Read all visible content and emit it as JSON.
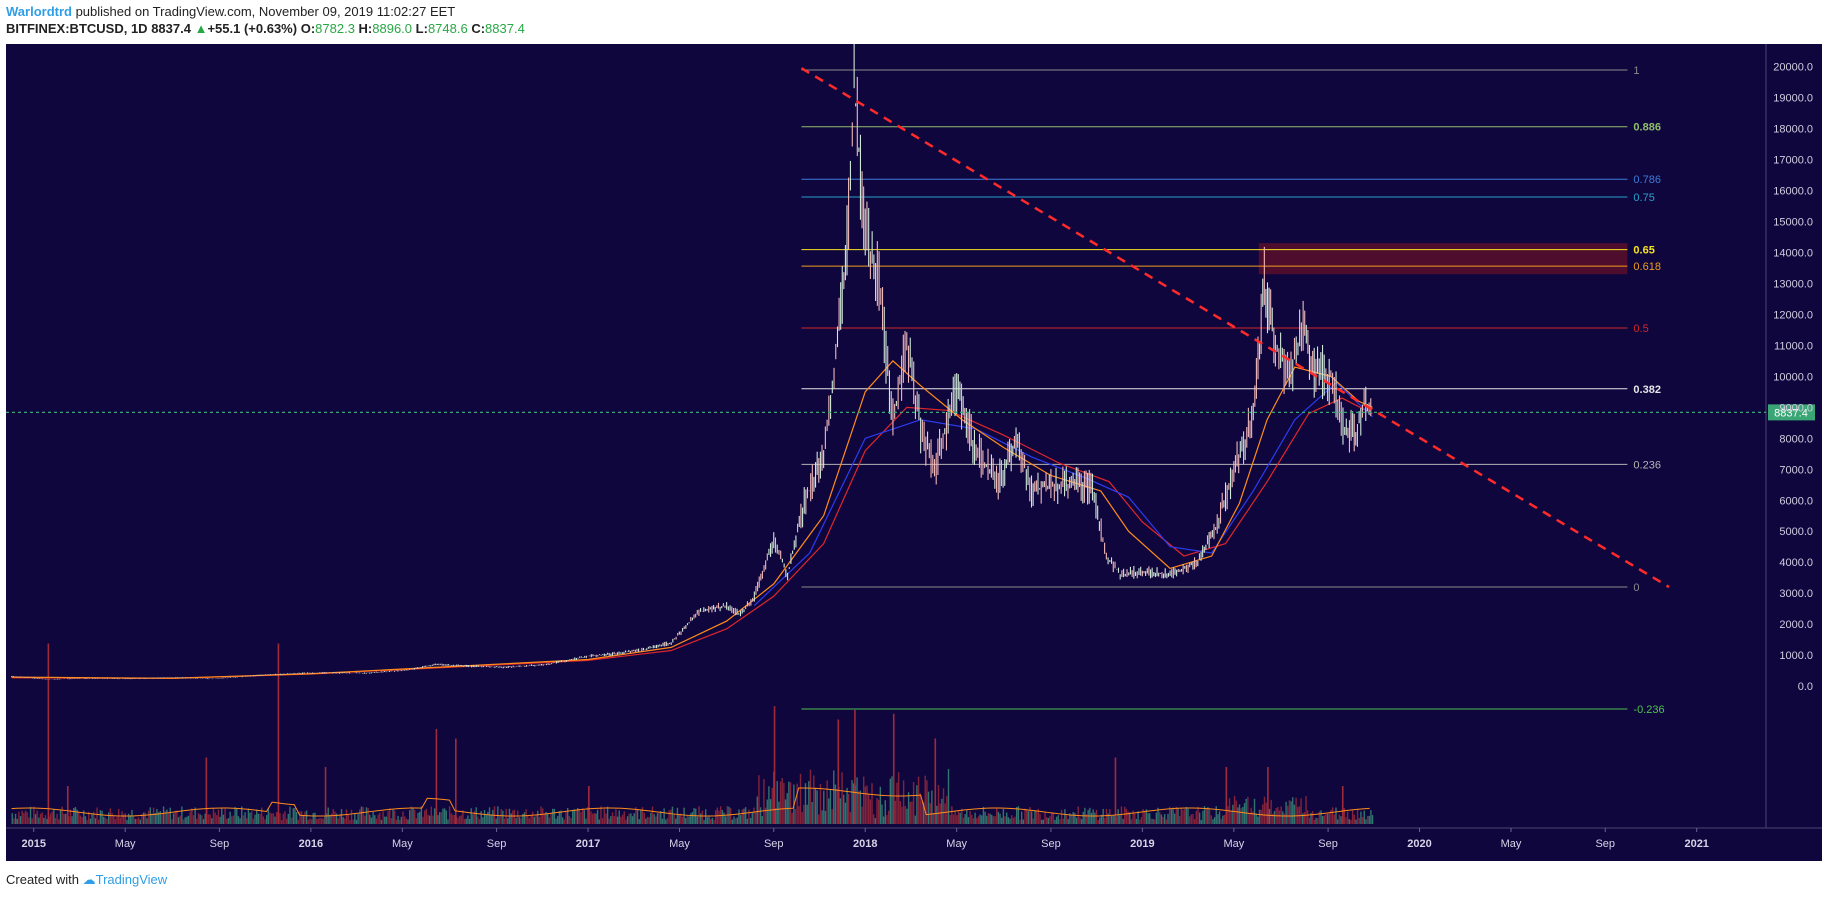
{
  "header": {
    "author": "Warlordtrd",
    "published": " published on TradingView.com, November 09, 2019 11:02:27 EET",
    "symbol": "BITFINEX:BTCUSD, 1D",
    "last": "8837.4",
    "change": "+55.1 (+0.63%)",
    "o_label": "O:",
    "o": "8782.3",
    "h_label": "H:",
    "h": "8896.0",
    "l_label": "L:",
    "l": "8748.6",
    "c_label": "C:",
    "c": "8837.4"
  },
  "footer": {
    "created": "Created with",
    "brand": "TradingView"
  },
  "colors": {
    "background": "#10063e",
    "trendline": "#ff2a2a",
    "ma_orange": "#ff8c1a",
    "ma_red": "#e0262b",
    "ma_blue": "#2b3df0",
    "last_price": "#3aa675"
  },
  "chart_data": {
    "type": "candlestick",
    "symbol": "BITFINEX:BTCUSD",
    "interval": "1D",
    "last_price_label": "8837.4",
    "y_ticks": [
      "20000.0",
      "19000.0",
      "18000.0",
      "17000.0",
      "16000.0",
      "15000.0",
      "14000.0",
      "13000.0",
      "12000.0",
      "11000.0",
      "10000.0",
      "9000.0",
      "8000.0",
      "7000.0",
      "6000.0",
      "5000.0",
      "4000.0",
      "3000.0",
      "2000.0",
      "1000.0",
      "0.0"
    ],
    "ylim": [
      -1000,
      21000
    ],
    "x_ticks": [
      {
        "label": "2015",
        "t": 2015.0
      },
      {
        "label": "May",
        "t": 2015.33
      },
      {
        "label": "Sep",
        "t": 2015.67
      },
      {
        "label": "2016",
        "t": 2016.0
      },
      {
        "label": "May",
        "t": 2016.33
      },
      {
        "label": "Sep",
        "t": 2016.67
      },
      {
        "label": "2017",
        "t": 2017.0
      },
      {
        "label": "May",
        "t": 2017.33
      },
      {
        "label": "Sep",
        "t": 2017.67
      },
      {
        "label": "2018",
        "t": 2018.0
      },
      {
        "label": "May",
        "t": 2018.33
      },
      {
        "label": "Sep",
        "t": 2018.67
      },
      {
        "label": "2019",
        "t": 2019.0
      },
      {
        "label": "May",
        "t": 2019.33
      },
      {
        "label": "Sep",
        "t": 2019.67
      },
      {
        "label": "2020",
        "t": 2020.0
      },
      {
        "label": "May",
        "t": 2020.33
      },
      {
        "label": "Sep",
        "t": 2020.67
      },
      {
        "label": "2021",
        "t": 2021.0
      }
    ],
    "xlim": [
      2014.9,
      2021.25
    ],
    "fib_levels": [
      {
        "label": "1",
        "price": 19891,
        "color": "#8a8a8a"
      },
      {
        "label": "0.886",
        "price": 18060,
        "color": "#8fbf6a"
      },
      {
        "label": "0.786",
        "price": 16365,
        "color": "#3c7bd9"
      },
      {
        "label": "0.75",
        "price": 15790,
        "color": "#26a3c9"
      },
      {
        "label": "0.65",
        "price": 14090,
        "color": "#f5e322"
      },
      {
        "label": "0.618",
        "price": 13560,
        "color": "#f09c1d"
      },
      {
        "label": "0.5",
        "price": 11560,
        "color": "#d0282b"
      },
      {
        "label": "0.382",
        "price": 9600,
        "color": "#e6e6e6"
      },
      {
        "label": "0.236",
        "price": 7160,
        "color": "#b3b3b3"
      },
      {
        "label": "0",
        "price": 3200,
        "color": "#8a8a8a"
      },
      {
        "label": "-0.236",
        "price": -740,
        "color": "#4cc24c"
      }
    ],
    "fib_range": {
      "t_start": 2017.77,
      "t_end": 2020.75
    },
    "resistance_zone": {
      "t_start": 2019.42,
      "t_end": 2020.75,
      "p_low": 13300,
      "p_high": 14300
    },
    "trendline": {
      "t1": 2017.77,
      "p1": 19950,
      "t2": 2020.9,
      "p2": 3200
    },
    "price_path": [
      [
        2014.92,
        320
      ],
      [
        2015.05,
        220
      ],
      [
        2015.2,
        250
      ],
      [
        2015.35,
        235
      ],
      [
        2015.5,
        280
      ],
      [
        2015.65,
        235
      ],
      [
        2015.83,
        360
      ],
      [
        2016.0,
        430
      ],
      [
        2016.2,
        420
      ],
      [
        2016.35,
        520
      ],
      [
        2016.45,
        700
      ],
      [
        2016.55,
        650
      ],
      [
        2016.7,
        610
      ],
      [
        2016.85,
        700
      ],
      [
        2017.0,
        970
      ],
      [
        2017.1,
        1050
      ],
      [
        2017.2,
        1180
      ],
      [
        2017.3,
        1400
      ],
      [
        2017.4,
        2400
      ],
      [
        2017.5,
        2600
      ],
      [
        2017.55,
        2300
      ],
      [
        2017.6,
        2900
      ],
      [
        2017.67,
        4700
      ],
      [
        2017.72,
        3600
      ],
      [
        2017.78,
        5900
      ],
      [
        2017.85,
        7500
      ],
      [
        2017.9,
        11000
      ],
      [
        2017.94,
        15000
      ],
      [
        2017.96,
        19500
      ],
      [
        2018.0,
        14500
      ],
      [
        2018.05,
        13000
      ],
      [
        2018.1,
        8500
      ],
      [
        2018.15,
        11000
      ],
      [
        2018.2,
        8300
      ],
      [
        2018.25,
        7000
      ],
      [
        2018.33,
        9600
      ],
      [
        2018.4,
        7600
      ],
      [
        2018.48,
        6600
      ],
      [
        2018.55,
        7900
      ],
      [
        2018.6,
        6300
      ],
      [
        2018.67,
        6500
      ],
      [
        2018.75,
        6500
      ],
      [
        2018.82,
        6400
      ],
      [
        2018.87,
        4200
      ],
      [
        2018.92,
        3600
      ],
      [
        2019.0,
        3700
      ],
      [
        2019.1,
        3600
      ],
      [
        2019.2,
        4000
      ],
      [
        2019.27,
        5200
      ],
      [
        2019.33,
        7000
      ],
      [
        2019.4,
        8600
      ],
      [
        2019.44,
        13000
      ],
      [
        2019.48,
        11000
      ],
      [
        2019.53,
        10000
      ],
      [
        2019.58,
        11500
      ],
      [
        2019.62,
        10200
      ],
      [
        2019.68,
        10000
      ],
      [
        2019.73,
        8200
      ],
      [
        2019.77,
        8100
      ],
      [
        2019.8,
        9200
      ],
      [
        2019.83,
        8840
      ]
    ],
    "ma_orange": [
      [
        2014.92,
        290
      ],
      [
        2015.5,
        255
      ],
      [
        2016.0,
        400
      ],
      [
        2016.5,
        630
      ],
      [
        2017.0,
        860
      ],
      [
        2017.3,
        1250
      ],
      [
        2017.5,
        2100
      ],
      [
        2017.67,
        3300
      ],
      [
        2017.85,
        5500
      ],
      [
        2018.0,
        9500
      ],
      [
        2018.1,
        10500
      ],
      [
        2018.2,
        9700
      ],
      [
        2018.35,
        8600
      ],
      [
        2018.5,
        7700
      ],
      [
        2018.67,
        6800
      ],
      [
        2018.85,
        6300
      ],
      [
        2018.95,
        5000
      ],
      [
        2019.1,
        3800
      ],
      [
        2019.25,
        4200
      ],
      [
        2019.35,
        5900
      ],
      [
        2019.45,
        8600
      ],
      [
        2019.55,
        10300
      ],
      [
        2019.68,
        10000
      ],
      [
        2019.78,
        9200
      ],
      [
        2019.83,
        9000
      ]
    ],
    "ma_red": [
      [
        2014.92,
        270
      ],
      [
        2015.5,
        250
      ],
      [
        2016.0,
        390
      ],
      [
        2016.5,
        610
      ],
      [
        2017.0,
        830
      ],
      [
        2017.3,
        1150
      ],
      [
        2017.5,
        1850
      ],
      [
        2017.67,
        2900
      ],
      [
        2017.85,
        4600
      ],
      [
        2018.0,
        7600
      ],
      [
        2018.15,
        9000
      ],
      [
        2018.3,
        8900
      ],
      [
        2018.5,
        8100
      ],
      [
        2018.7,
        7200
      ],
      [
        2018.88,
        6600
      ],
      [
        2019.0,
        5300
      ],
      [
        2019.15,
        4200
      ],
      [
        2019.3,
        4600
      ],
      [
        2019.45,
        6600
      ],
      [
        2019.6,
        8800
      ],
      [
        2019.72,
        9300
      ],
      [
        2019.83,
        8800
      ]
    ],
    "ma_blue": [
      [
        2017.6,
        2600
      ],
      [
        2017.8,
        4300
      ],
      [
        2018.0,
        8000
      ],
      [
        2018.2,
        8600
      ],
      [
        2018.4,
        8300
      ],
      [
        2018.6,
        7400
      ],
      [
        2018.8,
        6700
      ],
      [
        2018.95,
        6100
      ],
      [
        2019.1,
        4500
      ],
      [
        2019.25,
        4300
      ],
      [
        2019.4,
        6300
      ],
      [
        2019.55,
        8600
      ],
      [
        2019.7,
        9800
      ],
      [
        2019.83,
        8700
      ]
    ],
    "volume_spikes": [
      [
        2015.05,
        0.95
      ],
      [
        2015.12,
        0.2
      ],
      [
        2015.62,
        0.35
      ],
      [
        2015.88,
        0.95
      ],
      [
        2016.05,
        0.3
      ],
      [
        2016.45,
        0.5
      ],
      [
        2016.52,
        0.45
      ],
      [
        2017.0,
        0.2
      ],
      [
        2017.67,
        0.62
      ],
      [
        2017.9,
        0.55
      ],
      [
        2017.96,
        0.6
      ],
      [
        2018.1,
        0.58
      ],
      [
        2018.25,
        0.45
      ],
      [
        2018.9,
        0.35
      ],
      [
        2019.3,
        0.3
      ],
      [
        2019.45,
        0.3
      ],
      [
        2019.72,
        0.2
      ]
    ]
  }
}
